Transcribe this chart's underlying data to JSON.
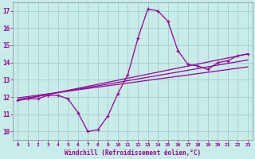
{
  "xlabel": "Windchill (Refroidissement éolien,°C)",
  "background_color": "#c8ece8",
  "grid_color": "#a0d0cc",
  "line_color": "#990099",
  "spine_color": "#888888",
  "xlim": [
    -0.5,
    23.5
  ],
  "ylim": [
    9.5,
    17.5
  ],
  "yticks": [
    10,
    11,
    12,
    13,
    14,
    15,
    16,
    17
  ],
  "xticks": [
    0,
    1,
    2,
    3,
    4,
    5,
    6,
    7,
    8,
    9,
    10,
    11,
    12,
    13,
    14,
    15,
    16,
    17,
    18,
    19,
    20,
    21,
    22,
    23
  ],
  "main_line_x": [
    0,
    1,
    2,
    3,
    4,
    5,
    6,
    7,
    8,
    9,
    10,
    11,
    12,
    13,
    14,
    15,
    16,
    17,
    18,
    19,
    20,
    21,
    22,
    23
  ],
  "main_line_y": [
    11.8,
    11.9,
    11.9,
    12.1,
    12.1,
    11.9,
    11.1,
    10.0,
    10.1,
    10.9,
    12.2,
    13.3,
    15.4,
    17.1,
    17.0,
    16.4,
    14.7,
    13.9,
    13.8,
    13.6,
    14.0,
    14.1,
    14.4,
    14.5
  ],
  "trend_line1_x": [
    0,
    23
  ],
  "trend_line1_y": [
    11.8,
    14.5
  ],
  "trend_line2_x": [
    0,
    23
  ],
  "trend_line2_y": [
    11.95,
    13.75
  ],
  "trend_line3_x": [
    0,
    23
  ],
  "trend_line3_y": [
    11.85,
    14.15
  ]
}
